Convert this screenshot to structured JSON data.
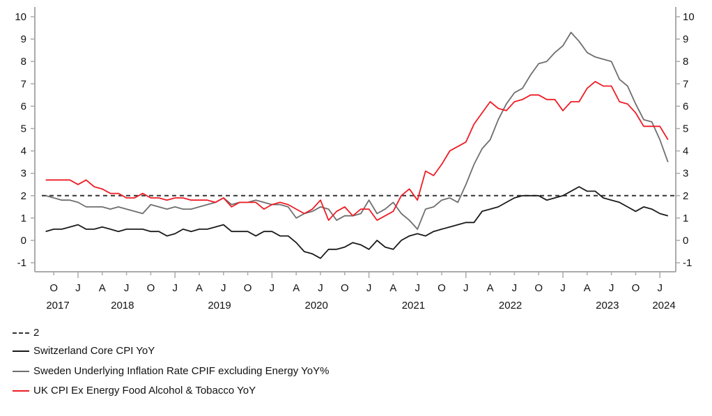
{
  "chart_data": {
    "type": "line",
    "title": "",
    "xlabel": "",
    "ylabel": "",
    "ylim": [
      -1,
      10
    ],
    "yticks": [
      -1,
      0,
      1,
      2,
      3,
      4,
      5,
      6,
      7,
      8,
      9,
      10
    ],
    "y_axis_both_sides": true,
    "grid": false,
    "legend_placement": "bottom",
    "x_start": "2017-09",
    "x_frequency": "monthly",
    "quarter_labels": {
      "1": "J",
      "4": "A",
      "7": "J",
      "10": "O"
    },
    "year_labels": [
      "2017",
      "2018",
      "2019",
      "2020",
      "2021",
      "2022",
      "2023",
      "2024"
    ],
    "reference_line": {
      "name": "2",
      "value": 2,
      "style": "dashed",
      "color": "#333333"
    },
    "series": [
      {
        "name": "Switzerland Core CPI YoY",
        "color": "#1a1a1a",
        "values": [
          0.4,
          0.5,
          0.5,
          0.6,
          0.7,
          0.5,
          0.5,
          0.6,
          0.5,
          0.4,
          0.5,
          0.5,
          0.5,
          0.4,
          0.4,
          0.2,
          0.3,
          0.5,
          0.4,
          0.5,
          0.5,
          0.6,
          0.7,
          0.4,
          0.4,
          0.4,
          0.2,
          0.4,
          0.4,
          0.2,
          0.2,
          -0.1,
          -0.5,
          -0.6,
          -0.8,
          -0.4,
          -0.4,
          -0.3,
          -0.1,
          -0.2,
          -0.4,
          0.0,
          -0.3,
          -0.4,
          0.0,
          0.2,
          0.3,
          0.2,
          0.4,
          0.5,
          0.6,
          0.7,
          0.8,
          0.8,
          1.3,
          1.4,
          1.5,
          1.7,
          1.9,
          2.0,
          2.0,
          2.0,
          1.8,
          1.9,
          2.0,
          2.2,
          2.4,
          2.2,
          2.2,
          1.9,
          1.8,
          1.7,
          1.5,
          1.3,
          1.5,
          1.4,
          1.2,
          1.1
        ]
      },
      {
        "name": "Sweden Underlying Inflation Rate CPIF excluding Energy YoY%",
        "color": "#6e6e6e",
        "values": [
          2.0,
          1.9,
          1.8,
          1.8,
          1.7,
          1.5,
          1.5,
          1.5,
          1.4,
          1.5,
          1.4,
          1.3,
          1.2,
          1.6,
          1.5,
          1.4,
          1.5,
          1.4,
          1.4,
          1.5,
          1.6,
          1.7,
          1.9,
          1.6,
          1.7,
          1.7,
          1.8,
          1.7,
          1.6,
          1.6,
          1.5,
          1.0,
          1.2,
          1.3,
          1.5,
          1.4,
          0.9,
          1.1,
          1.1,
          1.2,
          1.8,
          1.2,
          1.4,
          1.7,
          1.2,
          0.9,
          0.5,
          1.4,
          1.5,
          1.8,
          1.9,
          1.7,
          2.5,
          3.4,
          4.1,
          4.5,
          5.4,
          6.1,
          6.6,
          6.8,
          7.4,
          7.9,
          8.0,
          8.4,
          8.7,
          9.3,
          8.9,
          8.4,
          8.2,
          8.1,
          8.0,
          7.2,
          6.9,
          6.1,
          5.4,
          5.3,
          4.5,
          3.5
        ]
      },
      {
        "name": "UK CPI Ex Energy Food Alcohol & Tobacco YoY",
        "color": "#ee1c25",
        "values": [
          2.7,
          2.7,
          2.7,
          2.7,
          2.5,
          2.7,
          2.4,
          2.3,
          2.1,
          2.1,
          1.9,
          1.9,
          2.1,
          1.9,
          1.9,
          1.8,
          1.9,
          1.9,
          1.8,
          1.8,
          1.8,
          1.7,
          1.9,
          1.5,
          1.7,
          1.7,
          1.7,
          1.4,
          1.6,
          1.7,
          1.6,
          1.4,
          1.2,
          1.4,
          1.8,
          0.9,
          1.3,
          1.5,
          1.1,
          1.4,
          1.4,
          0.9,
          1.1,
          1.3,
          2.0,
          2.3,
          1.8,
          3.1,
          2.9,
          3.4,
          4.0,
          4.2,
          4.4,
          5.2,
          5.7,
          6.2,
          5.9,
          5.8,
          6.2,
          6.3,
          6.5,
          6.5,
          6.3,
          6.3,
          5.8,
          6.2,
          6.2,
          6.8,
          7.1,
          6.9,
          6.9,
          6.2,
          6.1,
          5.7,
          5.1,
          5.1,
          5.1,
          4.5
        ]
      }
    ]
  }
}
